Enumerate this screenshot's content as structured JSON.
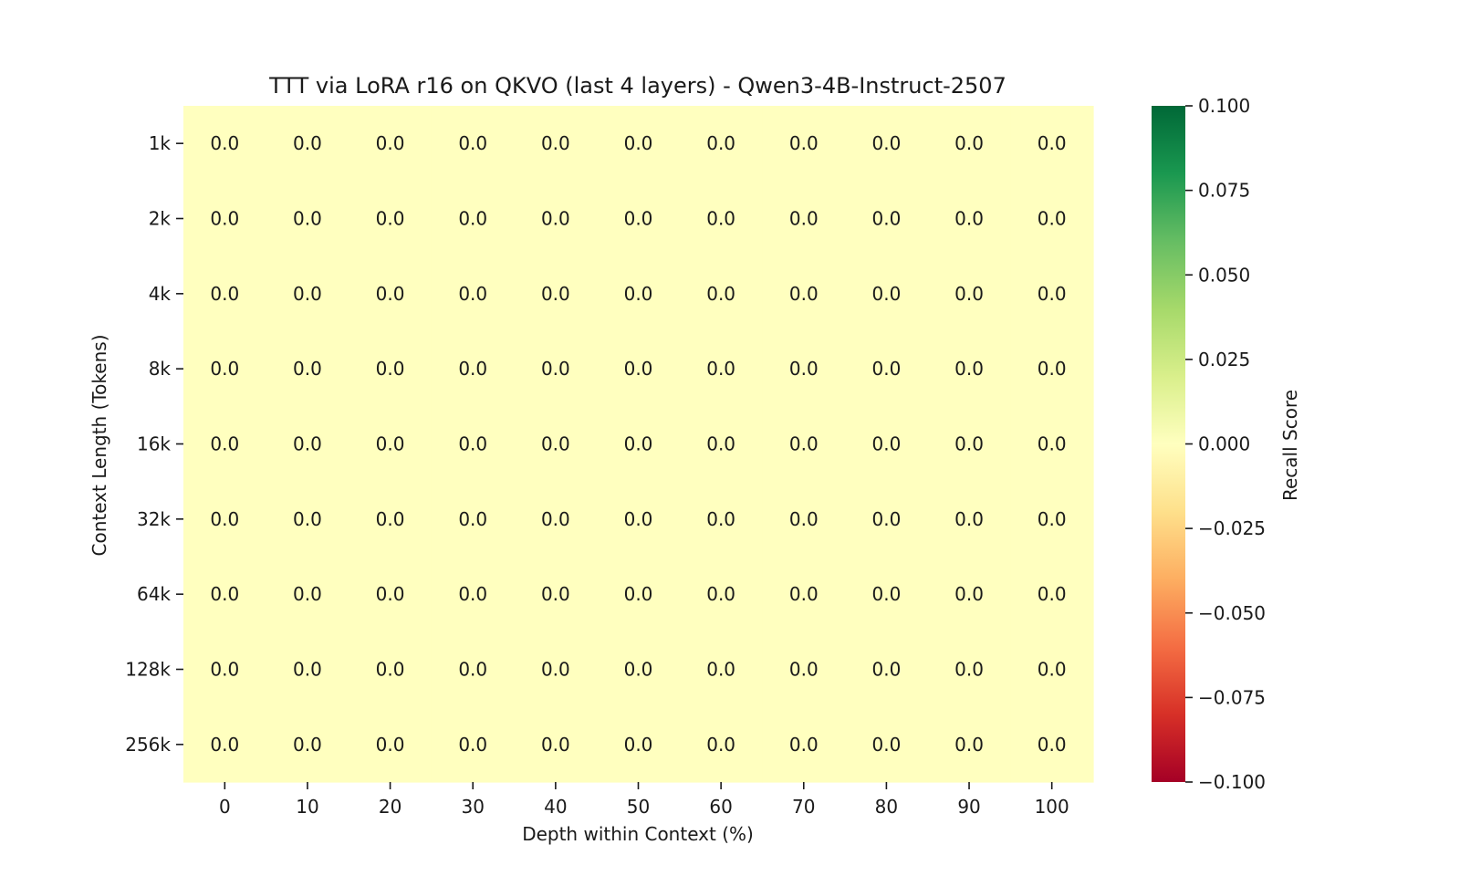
{
  "chart_data": {
    "type": "heatmap",
    "title": "TTT via LoRA r16 on QKVO (last 4 layers) - Qwen3-4B-Instruct-2507",
    "xlabel": "Depth within Context (%)",
    "ylabel": "Context Length (Tokens)",
    "x_categories": [
      "0",
      "10",
      "20",
      "30",
      "40",
      "50",
      "60",
      "70",
      "80",
      "90",
      "100"
    ],
    "y_categories": [
      "1k",
      "2k",
      "4k",
      "8k",
      "16k",
      "32k",
      "64k",
      "128k",
      "256k"
    ],
    "values": [
      [
        0.0,
        0.0,
        0.0,
        0.0,
        0.0,
        0.0,
        0.0,
        0.0,
        0.0,
        0.0,
        0.0
      ],
      [
        0.0,
        0.0,
        0.0,
        0.0,
        0.0,
        0.0,
        0.0,
        0.0,
        0.0,
        0.0,
        0.0
      ],
      [
        0.0,
        0.0,
        0.0,
        0.0,
        0.0,
        0.0,
        0.0,
        0.0,
        0.0,
        0.0,
        0.0
      ],
      [
        0.0,
        0.0,
        0.0,
        0.0,
        0.0,
        0.0,
        0.0,
        0.0,
        0.0,
        0.0,
        0.0
      ],
      [
        0.0,
        0.0,
        0.0,
        0.0,
        0.0,
        0.0,
        0.0,
        0.0,
        0.0,
        0.0,
        0.0
      ],
      [
        0.0,
        0.0,
        0.0,
        0.0,
        0.0,
        0.0,
        0.0,
        0.0,
        0.0,
        0.0,
        0.0
      ],
      [
        0.0,
        0.0,
        0.0,
        0.0,
        0.0,
        0.0,
        0.0,
        0.0,
        0.0,
        0.0,
        0.0
      ],
      [
        0.0,
        0.0,
        0.0,
        0.0,
        0.0,
        0.0,
        0.0,
        0.0,
        0.0,
        0.0,
        0.0
      ],
      [
        0.0,
        0.0,
        0.0,
        0.0,
        0.0,
        0.0,
        0.0,
        0.0,
        0.0,
        0.0,
        0.0
      ]
    ],
    "value_format": "0.0",
    "colorbar": {
      "label": "Recall Score",
      "range": [
        -0.1,
        0.1
      ],
      "ticks": [
        "0.100",
        "0.075",
        "0.050",
        "0.025",
        "0.000",
        "−0.025",
        "−0.050",
        "−0.075",
        "−0.100"
      ],
      "colormap": "RdYlGn",
      "stops": [
        "#a50026",
        "#d73027",
        "#f46d43",
        "#fdae61",
        "#fee08b",
        "#ffffbf",
        "#d9ef8b",
        "#a6d96a",
        "#66bd63",
        "#1a9850",
        "#006837"
      ]
    },
    "cell_color": "#ffffbf",
    "grid": false
  }
}
